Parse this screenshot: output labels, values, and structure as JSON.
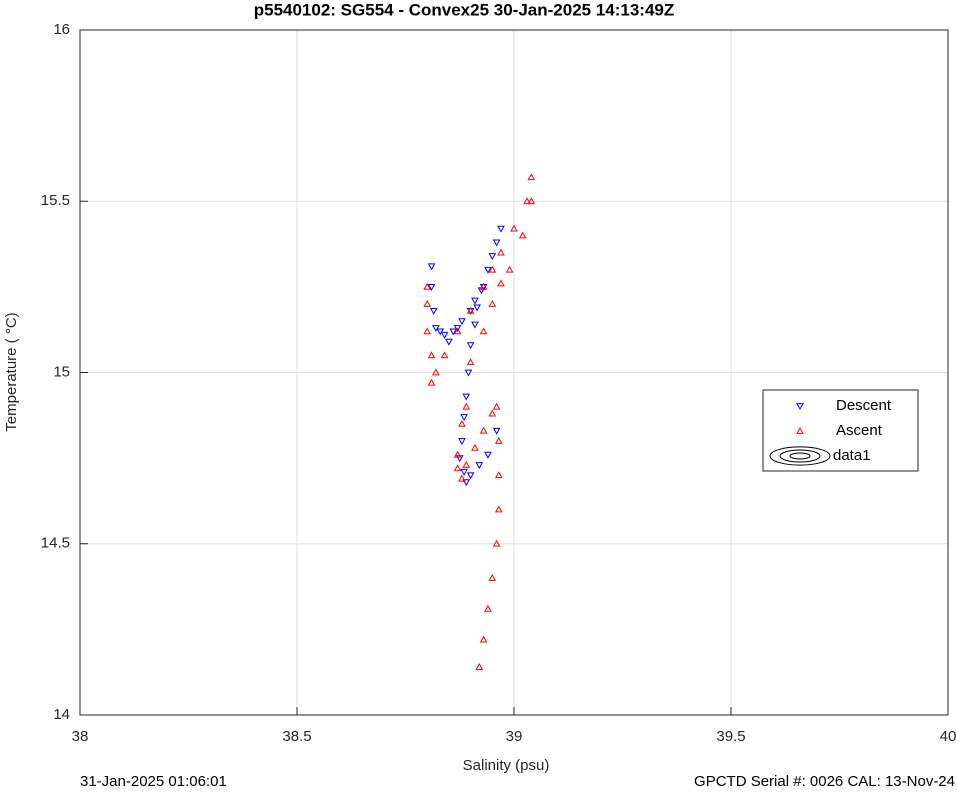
{
  "chart_data": {
    "type": "scatter",
    "title": "p5540102: SG554 - Convex25 30-Jan-2025 14:13:49Z",
    "x_label": "Salinity (psu)",
    "y_label": "Temperature (  °C)",
    "footer_left": "31-Jan-2025 01:06:01",
    "footer_right": "GPCTD Serial #: 0026 CAL: 13-Nov-24",
    "xlim": [
      38,
      40
    ],
    "xticks": [
      38,
      38.5,
      39,
      39.5,
      40
    ],
    "ylim": [
      14,
      16
    ],
    "yticks": [
      14,
      14.5,
      15,
      15.5,
      16
    ],
    "grid": true,
    "legend": "right",
    "series": [
      {
        "name": "Descent",
        "color": "#0000ff",
        "marker": "triangle-down",
        "x": [
          38.81,
          38.81,
          38.815,
          38.82,
          38.83,
          38.84,
          38.85,
          38.86,
          38.87,
          38.88,
          38.9,
          38.91,
          38.93,
          38.94,
          38.95,
          38.96,
          38.97,
          38.925,
          38.915,
          38.91,
          38.9,
          38.895,
          38.89,
          38.885,
          38.88,
          38.875,
          38.885,
          38.89,
          38.9,
          38.92,
          38.94,
          38.96
        ],
        "values": [
          15.31,
          15.25,
          15.18,
          15.13,
          15.12,
          15.11,
          15.09,
          15.12,
          15.13,
          15.15,
          15.18,
          15.21,
          15.25,
          15.3,
          15.34,
          15.38,
          15.42,
          15.24,
          15.19,
          15.14,
          15.08,
          15.0,
          14.93,
          14.87,
          14.8,
          14.75,
          14.71,
          14.68,
          14.7,
          14.73,
          14.76,
          14.83
        ]
      },
      {
        "name": "Ascent",
        "color": "#ff0000",
        "marker": "triangle-up",
        "x": [
          38.92,
          38.93,
          38.94,
          38.95,
          38.96,
          38.965,
          38.965,
          38.965,
          38.96,
          38.95,
          38.93,
          38.91,
          38.89,
          38.88,
          38.87,
          38.87,
          38.88,
          38.89,
          38.81,
          38.82,
          38.81,
          38.8,
          38.8,
          38.8,
          38.84,
          38.87,
          38.9,
          38.93,
          38.95,
          38.97,
          39.0,
          39.03,
          39.04,
          38.9,
          38.93,
          38.95,
          38.97,
          38.99,
          39.02,
          39.04
        ],
        "values": [
          14.14,
          14.22,
          14.31,
          14.4,
          14.5,
          14.6,
          14.7,
          14.8,
          14.9,
          14.88,
          14.83,
          14.78,
          14.73,
          14.69,
          14.72,
          14.76,
          14.85,
          14.9,
          14.97,
          15.0,
          15.05,
          15.12,
          15.2,
          15.25,
          15.05,
          15.12,
          15.18,
          15.25,
          15.3,
          15.35,
          15.42,
          15.5,
          15.57,
          15.03,
          15.12,
          15.2,
          15.26,
          15.3,
          15.4,
          15.5
        ]
      },
      {
        "name": "data1",
        "color": "#000000",
        "marker": "contour",
        "x": [],
        "values": []
      }
    ]
  }
}
